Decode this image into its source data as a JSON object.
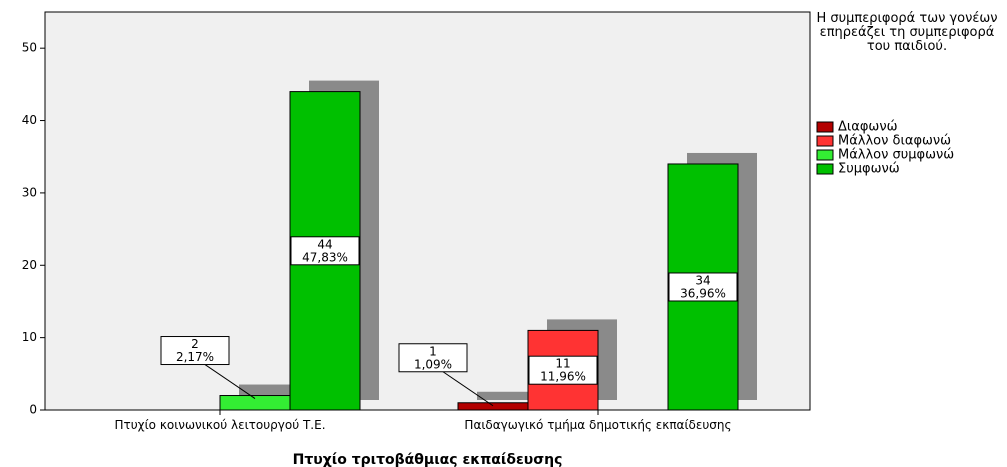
{
  "chart_data": {
    "type": "bar",
    "x_label": "Πτυχίο τριτοβάθμιας εκπαίδευσης",
    "legend_title": "Η συμπεριφορά των γονέων επηρεάζει τη συμπεριφορά του παιδιού.",
    "legend_position": "right",
    "categories": [
      "Πτυχίο κοινωνικού λειτουργού Τ.Ε.",
      "Παιδαγωγικό τμήμα δημοτικής εκπαίδευσης"
    ],
    "series": [
      {
        "name": "Διαφωνώ",
        "color": "#b30000",
        "values": [
          null,
          1
        ],
        "percent_labels": [
          null,
          "1,09%"
        ]
      },
      {
        "name": "Μάλλον διαφωνώ",
        "color": "#ff3333",
        "values": [
          null,
          11
        ],
        "percent_labels": [
          null,
          "11,96%"
        ]
      },
      {
        "name": "Μάλλον συμφωνώ",
        "color": "#33ee33",
        "values": [
          2,
          null
        ],
        "percent_labels": [
          "2,17%",
          null
        ]
      },
      {
        "name": "Συμφωνώ",
        "color": "#00c000",
        "values": [
          44,
          34
        ],
        "percent_labels": [
          "47,83%",
          "36,96%"
        ]
      }
    ],
    "ylim": [
      0,
      55
    ],
    "yticks": [
      0,
      10,
      20,
      30,
      40,
      50
    ],
    "grid": false
  }
}
